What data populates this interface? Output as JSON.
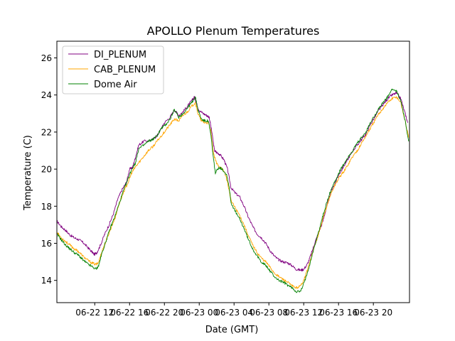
{
  "chart_data": {
    "type": "line",
    "title": "APOLLO Plenum Temperatures",
    "xlabel": "Date (GMT)",
    "ylabel": "Temperature (C)",
    "x_unit": "hours since 06-22 08:00 GMT",
    "xlim": [
      0,
      40.5
    ],
    "ylim": [
      12.8,
      26.9
    ],
    "xticks": [
      {
        "x": 4.35,
        "label": "06-22 12"
      },
      {
        "x": 8.35,
        "label": "06-22 16"
      },
      {
        "x": 12.35,
        "label": "06-22 20"
      },
      {
        "x": 16.35,
        "label": "06-23 00"
      },
      {
        "x": 20.35,
        "label": "06-23 04"
      },
      {
        "x": 24.35,
        "label": "06-23 08"
      },
      {
        "x": 28.35,
        "label": "06-23 12"
      },
      {
        "x": 32.35,
        "label": "06-23 16"
      },
      {
        "x": 36.35,
        "label": "06-23 20"
      }
    ],
    "yticks": [
      14,
      16,
      18,
      20,
      22,
      24,
      26
    ],
    "legend_position": "top-left",
    "series": [
      {
        "name": "DI_PLENUM",
        "color": "#800080",
        "points": [
          [
            0,
            17.2
          ],
          [
            0.5,
            16.9
          ],
          [
            1,
            16.7
          ],
          [
            1.5,
            16.45
          ],
          [
            2,
            16.3
          ],
          [
            2.5,
            16.2
          ],
          [
            3,
            16.05
          ],
          [
            3.5,
            15.8
          ],
          [
            4,
            15.55
          ],
          [
            4.3,
            15.4
          ],
          [
            4.6,
            15.5
          ],
          [
            5,
            15.9
          ],
          [
            5.5,
            16.5
          ],
          [
            6,
            17.0
          ],
          [
            6.5,
            17.6
          ],
          [
            7,
            18.4
          ],
          [
            7.5,
            18.9
          ],
          [
            8,
            19.3
          ],
          [
            8.35,
            20.0
          ],
          [
            8.7,
            20.1
          ],
          [
            9.0,
            20.6
          ],
          [
            9.4,
            21.3
          ],
          [
            10,
            21.5
          ],
          [
            11,
            21.6
          ],
          [
            11.5,
            21.8
          ],
          [
            12,
            22.2
          ],
          [
            12.35,
            22.5
          ],
          [
            13,
            22.8
          ],
          [
            13.5,
            23.2
          ],
          [
            14,
            22.9
          ],
          [
            14.5,
            23.1
          ],
          [
            15,
            23.4
          ],
          [
            15.5,
            23.7
          ],
          [
            15.8,
            23.9
          ],
          [
            16.0,
            23.6
          ],
          [
            16.3,
            23.2
          ],
          [
            16.8,
            23.0
          ],
          [
            17.2,
            22.9
          ],
          [
            17.5,
            22.8
          ],
          [
            17.8,
            22.0
          ],
          [
            18.1,
            21.0
          ],
          [
            18.35,
            20.9
          ],
          [
            18.7,
            20.8
          ],
          [
            19.2,
            20.5
          ],
          [
            19.6,
            20.0
          ],
          [
            20.0,
            19.0
          ],
          [
            20.5,
            18.7
          ],
          [
            21,
            18.5
          ],
          [
            21.5,
            18.0
          ],
          [
            22,
            17.4
          ],
          [
            22.5,
            16.9
          ],
          [
            23,
            16.5
          ],
          [
            23.5,
            16.3
          ],
          [
            24,
            16.0
          ],
          [
            24.5,
            15.6
          ],
          [
            25,
            15.3
          ],
          [
            25.5,
            15.1
          ],
          [
            26,
            15.0
          ],
          [
            26.5,
            14.95
          ],
          [
            27,
            14.8
          ],
          [
            27.5,
            14.6
          ],
          [
            28,
            14.55
          ],
          [
            28.35,
            14.6
          ],
          [
            28.8,
            14.9
          ],
          [
            29.2,
            15.4
          ],
          [
            29.6,
            16.0
          ],
          [
            30,
            16.5
          ],
          [
            30.5,
            17.1
          ],
          [
            31,
            18.0
          ],
          [
            31.5,
            18.8
          ],
          [
            32,
            19.3
          ],
          [
            32.5,
            19.8
          ],
          [
            33,
            20.2
          ],
          [
            33.5,
            20.6
          ],
          [
            34,
            21.0
          ],
          [
            34.5,
            21.3
          ],
          [
            35,
            21.6
          ],
          [
            35.5,
            21.9
          ],
          [
            36,
            22.4
          ],
          [
            36.5,
            22.8
          ],
          [
            37,
            23.2
          ],
          [
            37.5,
            23.5
          ],
          [
            38,
            23.8
          ],
          [
            38.5,
            24.0
          ],
          [
            39,
            24.1
          ],
          [
            39.5,
            23.8
          ],
          [
            40.0,
            23.0
          ],
          [
            40.3,
            22.5
          ]
        ]
      },
      {
        "name": "CAB_PLENUM",
        "color": "#FFA500",
        "points": [
          [
            0,
            16.6
          ],
          [
            0.5,
            16.3
          ],
          [
            1,
            16.1
          ],
          [
            1.5,
            15.9
          ],
          [
            2,
            15.7
          ],
          [
            2.5,
            15.55
          ],
          [
            3,
            15.3
          ],
          [
            3.5,
            15.1
          ],
          [
            4,
            14.95
          ],
          [
            4.5,
            14.85
          ],
          [
            4.8,
            15.0
          ],
          [
            5.2,
            15.6
          ],
          [
            5.7,
            16.2
          ],
          [
            6.2,
            16.8
          ],
          [
            6.7,
            17.4
          ],
          [
            7.2,
            18.2
          ],
          [
            7.7,
            18.8
          ],
          [
            8.2,
            19.3
          ],
          [
            8.6,
            19.8
          ],
          [
            9.0,
            20.1
          ],
          [
            9.5,
            20.4
          ],
          [
            10,
            20.7
          ],
          [
            10.5,
            21.0
          ],
          [
            11,
            21.2
          ],
          [
            11.5,
            21.5
          ],
          [
            12,
            21.8
          ],
          [
            12.5,
            22.1
          ],
          [
            13,
            22.4
          ],
          [
            13.5,
            22.7
          ],
          [
            14,
            22.6
          ],
          [
            14.5,
            22.9
          ],
          [
            15,
            23.1
          ],
          [
            15.5,
            23.4
          ],
          [
            15.9,
            23.6
          ],
          [
            16.2,
            23.0
          ],
          [
            16.6,
            22.6
          ],
          [
            17.0,
            22.5
          ],
          [
            17.4,
            22.5
          ],
          [
            17.7,
            22.0
          ],
          [
            18.0,
            20.8
          ],
          [
            18.35,
            20.3
          ],
          [
            18.8,
            20.1
          ],
          [
            19.3,
            19.8
          ],
          [
            19.6,
            19.3
          ],
          [
            20.0,
            18.3
          ],
          [
            20.5,
            17.9
          ],
          [
            21,
            17.5
          ],
          [
            21.5,
            17.0
          ],
          [
            22,
            16.4
          ],
          [
            22.5,
            15.9
          ],
          [
            23,
            15.5
          ],
          [
            23.5,
            15.2
          ],
          [
            24,
            15.0
          ],
          [
            24.5,
            14.7
          ],
          [
            25,
            14.4
          ],
          [
            25.5,
            14.2
          ],
          [
            26,
            14.05
          ],
          [
            26.5,
            13.9
          ],
          [
            27,
            13.7
          ],
          [
            27.5,
            13.6
          ],
          [
            28,
            13.7
          ],
          [
            28.5,
            14.2
          ],
          [
            29,
            14.9
          ],
          [
            29.5,
            15.7
          ],
          [
            30,
            16.4
          ],
          [
            30.5,
            17.2
          ],
          [
            31,
            18.0
          ],
          [
            31.5,
            18.7
          ],
          [
            32,
            19.2
          ],
          [
            32.5,
            19.6
          ],
          [
            33,
            19.9
          ],
          [
            33.5,
            20.3
          ],
          [
            34,
            20.7
          ],
          [
            34.5,
            21.0
          ],
          [
            35,
            21.4
          ],
          [
            35.5,
            21.8
          ],
          [
            36,
            22.2
          ],
          [
            36.5,
            22.6
          ],
          [
            37,
            23.0
          ],
          [
            37.5,
            23.3
          ],
          [
            38,
            23.6
          ],
          [
            38.5,
            23.8
          ],
          [
            39,
            23.9
          ],
          [
            39.5,
            23.6
          ],
          [
            40.0,
            22.6
          ],
          [
            40.4,
            21.7
          ]
        ]
      },
      {
        "name": "Dome Air",
        "color": "#008000",
        "points": [
          [
            0,
            16.5
          ],
          [
            0.5,
            16.2
          ],
          [
            1,
            15.9
          ],
          [
            1.5,
            15.7
          ],
          [
            2,
            15.5
          ],
          [
            2.5,
            15.35
          ],
          [
            3,
            15.1
          ],
          [
            3.5,
            14.9
          ],
          [
            4,
            14.75
          ],
          [
            4.5,
            14.6
          ],
          [
            4.8,
            14.8
          ],
          [
            5.2,
            15.5
          ],
          [
            5.7,
            16.2
          ],
          [
            6.2,
            16.9
          ],
          [
            6.7,
            17.5
          ],
          [
            7.2,
            18.2
          ],
          [
            7.7,
            18.9
          ],
          [
            8.2,
            19.5
          ],
          [
            8.6,
            20.0
          ],
          [
            9.0,
            20.3
          ],
          [
            9.4,
            21.1
          ],
          [
            10,
            21.3
          ],
          [
            10.5,
            21.5
          ],
          [
            11,
            21.6
          ],
          [
            11.5,
            21.8
          ],
          [
            12,
            22.2
          ],
          [
            12.5,
            22.4
          ],
          [
            13,
            22.7
          ],
          [
            13.5,
            23.2
          ],
          [
            14,
            22.8
          ],
          [
            14.5,
            23.0
          ],
          [
            15,
            23.3
          ],
          [
            15.5,
            23.6
          ],
          [
            15.9,
            23.9
          ],
          [
            16.2,
            23.2
          ],
          [
            16.6,
            22.7
          ],
          [
            17.0,
            22.6
          ],
          [
            17.4,
            22.6
          ],
          [
            17.7,
            21.8
          ],
          [
            18.0,
            20.5
          ],
          [
            18.2,
            19.8
          ],
          [
            18.6,
            20.1
          ],
          [
            19.0,
            20.0
          ],
          [
            19.5,
            19.7
          ],
          [
            19.8,
            19.0
          ],
          [
            20.0,
            18.2
          ],
          [
            20.5,
            17.7
          ],
          [
            21,
            17.3
          ],
          [
            21.5,
            16.8
          ],
          [
            22,
            16.2
          ],
          [
            22.5,
            15.7
          ],
          [
            23,
            15.3
          ],
          [
            23.5,
            15.0
          ],
          [
            24,
            14.8
          ],
          [
            24.5,
            14.5
          ],
          [
            25,
            14.2
          ],
          [
            25.5,
            14.0
          ],
          [
            26,
            13.9
          ],
          [
            26.5,
            13.75
          ],
          [
            27,
            13.6
          ],
          [
            27.5,
            13.4
          ],
          [
            28,
            13.4
          ],
          [
            28.5,
            14.0
          ],
          [
            29,
            14.8
          ],
          [
            29.5,
            15.7
          ],
          [
            30,
            16.5
          ],
          [
            30.5,
            17.4
          ],
          [
            31,
            18.2
          ],
          [
            31.5,
            18.9
          ],
          [
            32,
            19.4
          ],
          [
            32.5,
            19.9
          ],
          [
            33,
            20.3
          ],
          [
            33.5,
            20.7
          ],
          [
            34,
            21.0
          ],
          [
            34.5,
            21.4
          ],
          [
            35,
            21.7
          ],
          [
            35.5,
            22.0
          ],
          [
            36,
            22.5
          ],
          [
            36.5,
            22.9
          ],
          [
            37,
            23.3
          ],
          [
            37.5,
            23.6
          ],
          [
            38,
            23.9
          ],
          [
            38.5,
            24.3
          ],
          [
            39,
            24.2
          ],
          [
            39.5,
            23.7
          ],
          [
            40.0,
            22.6
          ],
          [
            40.4,
            21.5
          ]
        ]
      }
    ]
  }
}
